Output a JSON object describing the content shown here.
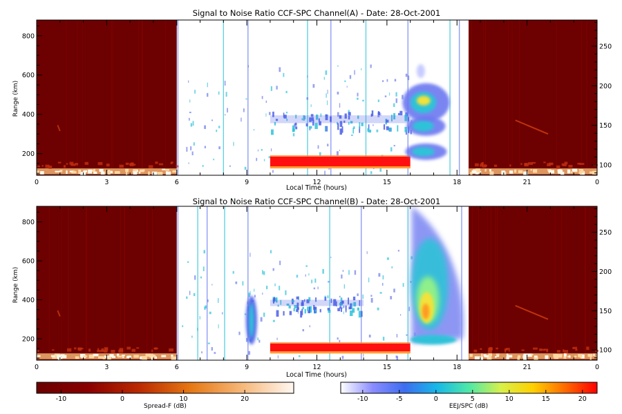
{
  "chart_data": [
    {
      "type": "heatmap",
      "title": "Signal to Noise Ratio CCF-SPC Channel(A) - Date: 28-Oct-2001",
      "xlabel": "Local Time (hours)",
      "ylabel": "Range (km)",
      "x_ticks": [
        "0",
        "3",
        "6",
        "9",
        "12",
        "15",
        "18",
        "21",
        "0"
      ],
      "xlim": [
        0,
        24
      ],
      "y_ticks_left": [
        "200",
        "400",
        "600",
        "800"
      ],
      "ylim_left": [
        90,
        880
      ],
      "y_ticks_right": [
        "100",
        "150",
        "200",
        "250"
      ],
      "ylim_right": [
        87,
        283
      ],
      "grid": false,
      "night_blocks": [
        [
          0,
          6
        ],
        [
          18.5,
          24
        ]
      ],
      "features": [
        {
          "feature": "150 km echoes",
          "t_start": 10.0,
          "t_end": 16.0,
          "range_from": 320,
          "range_to": 420
        },
        {
          "feature": "equatorial electrojet",
          "t_start": 10.0,
          "t_end": 16.0,
          "range_from": 125,
          "range_to": 185,
          "snr_db": 20
        },
        {
          "feature": "spread-F plumes",
          "t_start": 16.0,
          "t_end": 17.5,
          "range_from": 160,
          "range_to": 560
        }
      ]
    },
    {
      "type": "heatmap",
      "title": "Signal to Noise Ratio CCF-SPC Channel(B) - Date: 28-Oct-2001",
      "xlabel": "Local Time (hours)",
      "ylabel": "Range (km)",
      "x_ticks": [
        "0",
        "3",
        "6",
        "9",
        "12",
        "15",
        "18",
        "21",
        "0"
      ],
      "xlim": [
        0,
        24
      ],
      "y_ticks_left": [
        "200",
        "400",
        "600",
        "800"
      ],
      "ylim_left": [
        90,
        880
      ],
      "y_ticks_right": [
        "100",
        "150",
        "200",
        "250"
      ],
      "ylim_right": [
        87,
        283
      ],
      "grid": false,
      "night_blocks": [
        [
          0,
          6
        ],
        [
          18.5,
          24
        ]
      ],
      "features": [
        {
          "feature": "morning echoes",
          "t_start": 9.0,
          "t_end": 9.4,
          "range_from": 170,
          "range_to": 420
        },
        {
          "feature": "150 km echoes",
          "t_start": 10.0,
          "t_end": 14.0,
          "range_from": 340,
          "range_to": 420
        },
        {
          "feature": "equatorial electrojet",
          "t_start": 10.0,
          "t_end": 16.0,
          "range_from": 125,
          "range_to": 175,
          "snr_db": 20
        },
        {
          "feature": "spread-F plume",
          "t_start": 16.0,
          "t_end": 18.2,
          "range_from": 170,
          "range_to": 880
        }
      ]
    }
  ],
  "colorbars": [
    {
      "label": "Spread-F (dB)",
      "ticks": [
        "-10",
        "0",
        "10",
        "20"
      ],
      "range": [
        -14,
        28
      ],
      "stops": [
        "#6a0000",
        "#8a0000",
        "#bb2a00",
        "#e67814",
        "#f6b87a",
        "#fff8f2"
      ]
    },
    {
      "label": "EEJ/SPC (dB)",
      "ticks": [
        "-10",
        "-5",
        "0",
        "5",
        "10",
        "15",
        "20"
      ],
      "range": [
        -13,
        22
      ],
      "stops": [
        "#ffffff",
        "#8a8cff",
        "#3d6df0",
        "#17b8e8",
        "#4fe8a8",
        "#d8f04a",
        "#ffd000",
        "#ff6a00",
        "#ff0000"
      ]
    }
  ],
  "colors": {
    "night_bg": "#6d0000",
    "eej": "#ff1010",
    "echo_blue": "#4a5ee8",
    "echo_cyan": "#2fc2d8",
    "plume_yellow": "#f2e23a"
  }
}
